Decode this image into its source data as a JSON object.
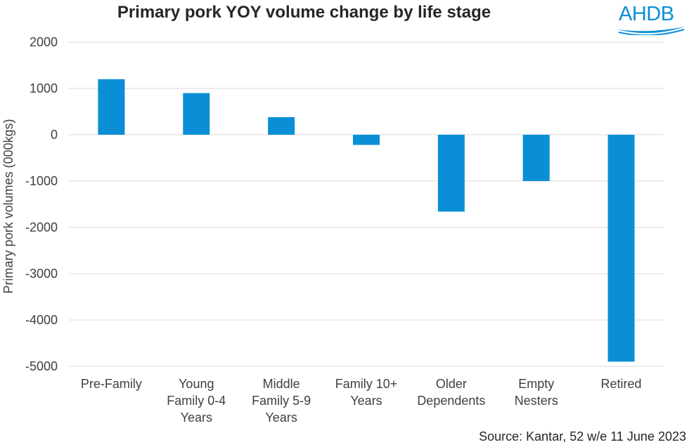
{
  "title": "Primary pork YOY volume change by life stage",
  "logo_text": "AHDB",
  "source": "Source: Kantar, 52 w/e 11 June 2023",
  "colors": {
    "bar": "#0a8fd6",
    "grid": "#d9d9d9",
    "text": "#404040",
    "brand": "#0a8fd6"
  },
  "chart_data": {
    "type": "bar",
    "title": "Primary pork YOY volume change by life stage",
    "xlabel": "",
    "ylabel": "Primary pork volumes (000kgs)",
    "ylim": [
      -5000,
      2000
    ],
    "yticks": [
      2000,
      1000,
      0,
      -1000,
      -2000,
      -3000,
      -4000,
      -5000
    ],
    "grid": true,
    "legend": "none",
    "categories": [
      [
        "Pre-Family"
      ],
      [
        "Young",
        "Family 0-4",
        "Years"
      ],
      [
        "Middle",
        "Family 5-9",
        "Years"
      ],
      [
        "Family 10+",
        "Years"
      ],
      [
        "Older",
        "Dependents"
      ],
      [
        "Empty",
        "Nesters"
      ],
      [
        "Retired"
      ]
    ],
    "values": [
      1200,
      900,
      380,
      -220,
      -1660,
      -1000,
      -4900
    ]
  }
}
